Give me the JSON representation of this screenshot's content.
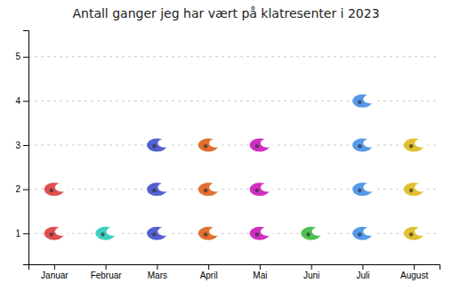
{
  "chart_data": {
    "type": "pictogram",
    "title": "Antall ganger jeg har vært på klatresenter i 2023",
    "categories": [
      "Januar",
      "Februar",
      "Mars",
      "April",
      "Mai",
      "Juni",
      "Juli",
      "August"
    ],
    "values": [
      2,
      1,
      3,
      3,
      3,
      1,
      4,
      3
    ],
    "colors": [
      "#e05050",
      "#40d0c0",
      "#5560d0",
      "#e07030",
      "#d030c0",
      "#50c050",
      "#5599e8",
      "#e0c030"
    ],
    "ylim": [
      0.3,
      5.6
    ],
    "yticks": [
      1,
      2,
      3,
      4,
      5
    ],
    "grid": true
  }
}
